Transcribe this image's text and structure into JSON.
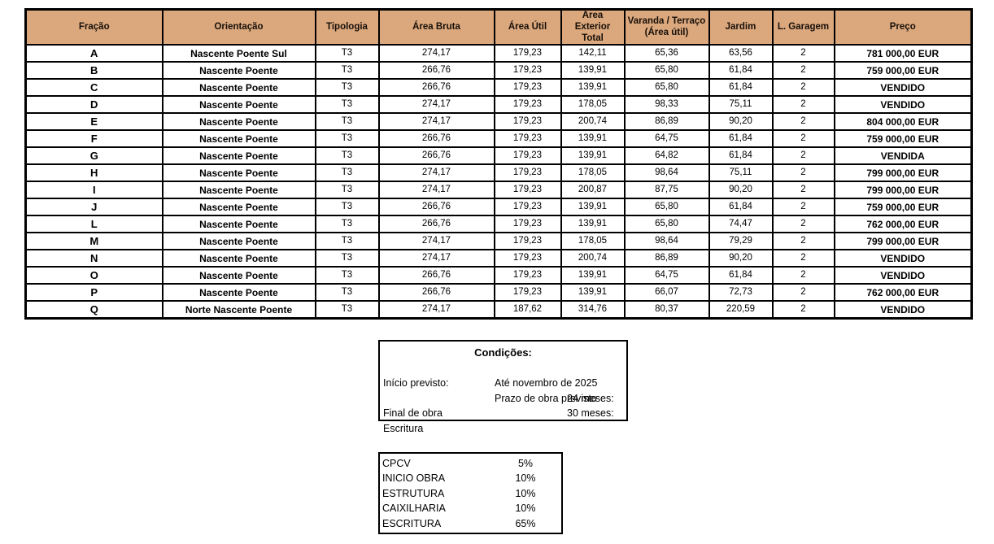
{
  "colors": {
    "header_background": "#DBA77C",
    "border": "#000000",
    "page_background": "#FFFFFF"
  },
  "table": {
    "columns": [
      "Fração",
      "Orientação",
      "Tipologia",
      "Área Bruta",
      "Área Útil",
      "Área Exterior\nTotal",
      "Varanda / Terraço\n(Área útil)",
      "Jardim",
      "L. Garagem",
      "Preço"
    ],
    "rows": [
      {
        "cells": [
          "A",
          "Nascente Poente Sul",
          "T3",
          "274,17",
          "179,23",
          "142,11",
          "65,36",
          "63,56",
          "2",
          "781 000,00 EUR"
        ]
      },
      {
        "cells": [
          "B",
          "Nascente Poente",
          "T3",
          "266,76",
          "179,23",
          "139,91",
          "65,80",
          "61,84",
          "2",
          "759 000,00 EUR"
        ]
      },
      {
        "cells": [
          "C",
          "Nascente Poente",
          "T3",
          "266,76",
          "179,23",
          "139,91",
          "65,80",
          "61,84",
          "2",
          "VENDIDO"
        ]
      },
      {
        "cells": [
          "D",
          "Nascente Poente",
          "T3",
          "274,17",
          "179,23",
          "178,05",
          "98,33",
          "75,11",
          "2",
          "VENDIDO"
        ]
      },
      {
        "cells": [
          "E",
          "Nascente Poente",
          "T3",
          "274,17",
          "179,23",
          "200,74",
          "86,89",
          "90,20",
          "2",
          "804 000,00 EUR"
        ]
      },
      {
        "cells": [
          "F",
          "Nascente Poente",
          "T3",
          "266,76",
          "179,23",
          "139,91",
          "64,75",
          "61,84",
          "2",
          "759 000,00 EUR"
        ]
      },
      {
        "cells": [
          "G",
          "Nascente Poente",
          "T3",
          "266,76",
          "179,23",
          "139,91",
          "64,82",
          "61,84",
          "2",
          "VENDIDA"
        ]
      },
      {
        "cells": [
          "H",
          "Nascente Poente",
          "T3",
          "274,17",
          "179,23",
          "178,05",
          "98,64",
          "75,11",
          "2",
          "799 000,00 EUR"
        ]
      },
      {
        "cells": [
          "I",
          "Nascente Poente",
          "T3",
          "274,17",
          "179,23",
          "200,87",
          "87,75",
          "90,20",
          "2",
          "799 000,00 EUR"
        ]
      },
      {
        "cells": [
          "J",
          "Nascente Poente",
          "T3",
          "266,76",
          "179,23",
          "139,91",
          "65,80",
          "61,84",
          "2",
          "759 000,00 EUR"
        ]
      },
      {
        "cells": [
          "L",
          "Nascente Poente",
          "T3",
          "266,76",
          "179,23",
          "139,91",
          "65,80",
          "74,47",
          "2",
          "762 000,00 EUR"
        ]
      },
      {
        "cells": [
          "M",
          "Nascente Poente",
          "T3",
          "274,17",
          "179,23",
          "178,05",
          "98,64",
          "79,29",
          "2",
          "799 000,00 EUR"
        ]
      },
      {
        "cells": [
          "N",
          "Nascente Poente",
          "T3",
          "274,17",
          "179,23",
          "200,74",
          "86,89",
          "90,20",
          "2",
          "VENDIDO"
        ]
      },
      {
        "cells": [
          "O",
          "Nascente Poente",
          "T3",
          "266,76",
          "179,23",
          "139,91",
          "64,75",
          "61,84",
          "2",
          "VENDIDO"
        ]
      },
      {
        "cells": [
          "P",
          "Nascente Poente",
          "T3",
          "266,76",
          "179,23",
          "139,91",
          "66,07",
          "72,73",
          "2",
          "762 000,00 EUR"
        ]
      },
      {
        "cells": [
          "Q",
          "Norte Nascente Poente",
          "T3",
          "274,17",
          "187,62",
          "314,76",
          "80,37",
          "220,59",
          "2",
          "VENDIDO"
        ]
      }
    ]
  },
  "conditions": {
    "title": "Condições:",
    "rows": [
      {
        "label": "Início previsto:",
        "mid": "Até novembro de 2025",
        "right": ""
      },
      {
        "label": "Prazo de obra previsto",
        "mid": "24 meses:",
        "right": "Final de obra"
      },
      {
        "label": "",
        "mid": "30 meses:",
        "right": "Escritura"
      }
    ]
  },
  "payment": {
    "rows": [
      {
        "label": "CPCV",
        "value": "5%"
      },
      {
        "label": "INICIO OBRA",
        "value": "10%"
      },
      {
        "label": "ESTRUTURA",
        "value": "10%"
      },
      {
        "label": "CAIXILHARIA",
        "value": "10%"
      },
      {
        "label": "ESCRITURA",
        "value": "65%"
      }
    ]
  }
}
